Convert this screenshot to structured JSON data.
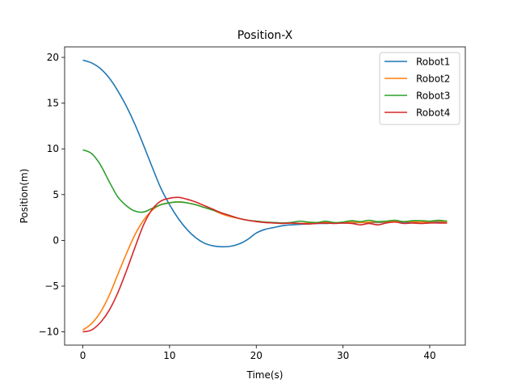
{
  "chart_data": {
    "type": "line",
    "title": "Position-X",
    "xlabel": "Time(s)",
    "ylabel": "Position(m)",
    "xlim": [
      -2.1,
      44.1
    ],
    "ylim": [
      -11.45,
      21.15
    ],
    "xticks": [
      0,
      10,
      20,
      30,
      40
    ],
    "yticks": [
      -10,
      -5,
      0,
      5,
      10,
      15,
      20
    ],
    "xtick_labels": [
      "0",
      "10",
      "20",
      "30",
      "40"
    ],
    "ytick_labels": [
      "−10",
      "−5",
      "0",
      "5",
      "10",
      "15",
      "20"
    ],
    "grid": false,
    "legend_position": "upper right",
    "series": [
      {
        "name": "Robot1",
        "color": "#1f77b4",
        "x": [
          0,
          1,
          2,
          3,
          4,
          5,
          6,
          7,
          8,
          9,
          10,
          11,
          12,
          13,
          14,
          15,
          16,
          17,
          18,
          19,
          20,
          21,
          22,
          23,
          24,
          25,
          26,
          27,
          28,
          29,
          30,
          31,
          32,
          33,
          34,
          35,
          36,
          37,
          38,
          39,
          40,
          41,
          42
        ],
        "values": [
          19.7,
          19.4,
          18.8,
          17.8,
          16.4,
          14.7,
          12.7,
          10.4,
          8.0,
          5.7,
          3.9,
          2.4,
          1.2,
          0.3,
          -0.3,
          -0.6,
          -0.7,
          -0.65,
          -0.4,
          0.1,
          0.8,
          1.2,
          1.4,
          1.6,
          1.7,
          1.75,
          1.8,
          1.85,
          1.85,
          1.9,
          1.9,
          1.9,
          1.95,
          1.95,
          1.95,
          2.0,
          2.0,
          2.0,
          2.0,
          2.0,
          2.0,
          2.0,
          2.0
        ]
      },
      {
        "name": "Robot2",
        "color": "#ff7f0e",
        "x": [
          0,
          1,
          2,
          3,
          4,
          5,
          6,
          7,
          8,
          9,
          10,
          11,
          12,
          13,
          14,
          15,
          16,
          17,
          18,
          19,
          20,
          21,
          22,
          23,
          24,
          25,
          26,
          27,
          28,
          29,
          30,
          31,
          32,
          33,
          34,
          35,
          36,
          37,
          38,
          39,
          40,
          41,
          42
        ],
        "values": [
          -9.8,
          -9.1,
          -7.9,
          -6.1,
          -3.8,
          -1.5,
          0.6,
          2.2,
          3.3,
          3.9,
          4.1,
          4.2,
          4.1,
          3.9,
          3.6,
          3.3,
          2.9,
          2.6,
          2.4,
          2.2,
          2.1,
          2.0,
          1.95,
          1.9,
          1.9,
          1.85,
          1.9,
          1.9,
          1.95,
          1.9,
          1.95,
          2.0,
          1.95,
          2.0,
          2.0,
          2.05,
          2.1,
          2.05,
          2.05,
          2.0,
          2.05,
          2.1,
          2.0
        ]
      },
      {
        "name": "Robot3",
        "color": "#2ca02c",
        "x": [
          0,
          1,
          2,
          3,
          4,
          5,
          6,
          7,
          8,
          9,
          10,
          11,
          12,
          13,
          14,
          15,
          16,
          17,
          18,
          19,
          20,
          21,
          22,
          23,
          24,
          25,
          26,
          27,
          28,
          29,
          30,
          31,
          32,
          33,
          34,
          35,
          36,
          37,
          38,
          39,
          40,
          41,
          42
        ],
        "values": [
          9.9,
          9.5,
          8.3,
          6.5,
          4.8,
          3.8,
          3.2,
          3.1,
          3.5,
          3.9,
          4.1,
          4.2,
          4.1,
          3.9,
          3.6,
          3.3,
          3.0,
          2.7,
          2.4,
          2.2,
          2.1,
          2.0,
          1.95,
          1.9,
          1.95,
          2.1,
          2.0,
          1.95,
          2.1,
          1.95,
          2.0,
          2.15,
          2.05,
          2.2,
          2.05,
          2.1,
          2.2,
          2.05,
          2.15,
          2.15,
          2.1,
          2.2,
          2.1
        ]
      },
      {
        "name": "Robot4",
        "color": "#d62728",
        "x": [
          0,
          1,
          2,
          3,
          4,
          5,
          6,
          7,
          8,
          9,
          10,
          11,
          12,
          13,
          14,
          15,
          16,
          17,
          18,
          19,
          20,
          21,
          22,
          23,
          24,
          25,
          26,
          27,
          28,
          29,
          30,
          31,
          32,
          33,
          34,
          35,
          36,
          37,
          38,
          39,
          40,
          41,
          42
        ],
        "values": [
          -10.0,
          -9.8,
          -9.0,
          -7.7,
          -5.8,
          -3.4,
          -0.8,
          1.7,
          3.4,
          4.3,
          4.6,
          4.7,
          4.5,
          4.2,
          3.8,
          3.4,
          3.0,
          2.7,
          2.4,
          2.2,
          2.05,
          1.95,
          1.9,
          1.85,
          1.9,
          1.85,
          1.8,
          1.85,
          1.9,
          1.85,
          1.9,
          1.85,
          1.7,
          1.85,
          1.7,
          1.9,
          2.0,
          1.85,
          1.9,
          1.85,
          1.9,
          1.9,
          1.9
        ]
      }
    ]
  }
}
